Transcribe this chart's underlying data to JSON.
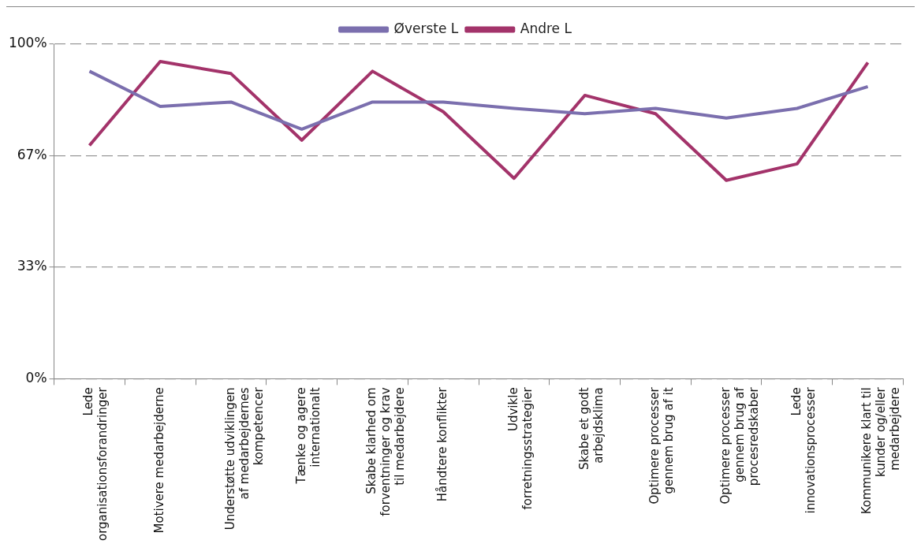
{
  "chart_data": {
    "type": "line",
    "categories": [
      "Lede organisationsforandringer",
      "Motivere medarbejderne",
      "Understøtte udviklingen af medarbejdernes kompetencer",
      "Tænke og agere internationalt",
      "Skabe klarhed om forventninger og krav til medarbejdere",
      "Håndtere konflikter",
      "Udvikle forretningsstrategier",
      "Skabe et godt arbejdsklima",
      "Optimere processer gennem brug af it",
      "Optimere processer gennem brug af procesredskaber",
      "Lede innovationsprocesser",
      "Kommunikere klart til kunder og/eller medarbejdere"
    ],
    "series": [
      {
        "name": "Øverste L",
        "color": "#7b6fae",
        "values": [
          91.9,
          81.4,
          82.7,
          74.6,
          82.7,
          82.7,
          80.8,
          79.2,
          80.8,
          77.9,
          80.8,
          87.3
        ]
      },
      {
        "name": "Andre L",
        "color": "#a3336a",
        "values": [
          69.7,
          94.8,
          91.2,
          71.3,
          91.9,
          79.8,
          59.9,
          84.7,
          79.2,
          59.3,
          64.2,
          94.5
        ]
      }
    ],
    "ylim": [
      0,
      100
    ],
    "yticks": [
      {
        "value": 0,
        "label": "0%"
      },
      {
        "value": 33.33,
        "label": "33%"
      },
      {
        "value": 66.67,
        "label": "67%"
      },
      {
        "value": 100,
        "label": "100%"
      }
    ],
    "grid": "y",
    "legend": "top",
    "marker": "none",
    "line_style": "solid"
  }
}
